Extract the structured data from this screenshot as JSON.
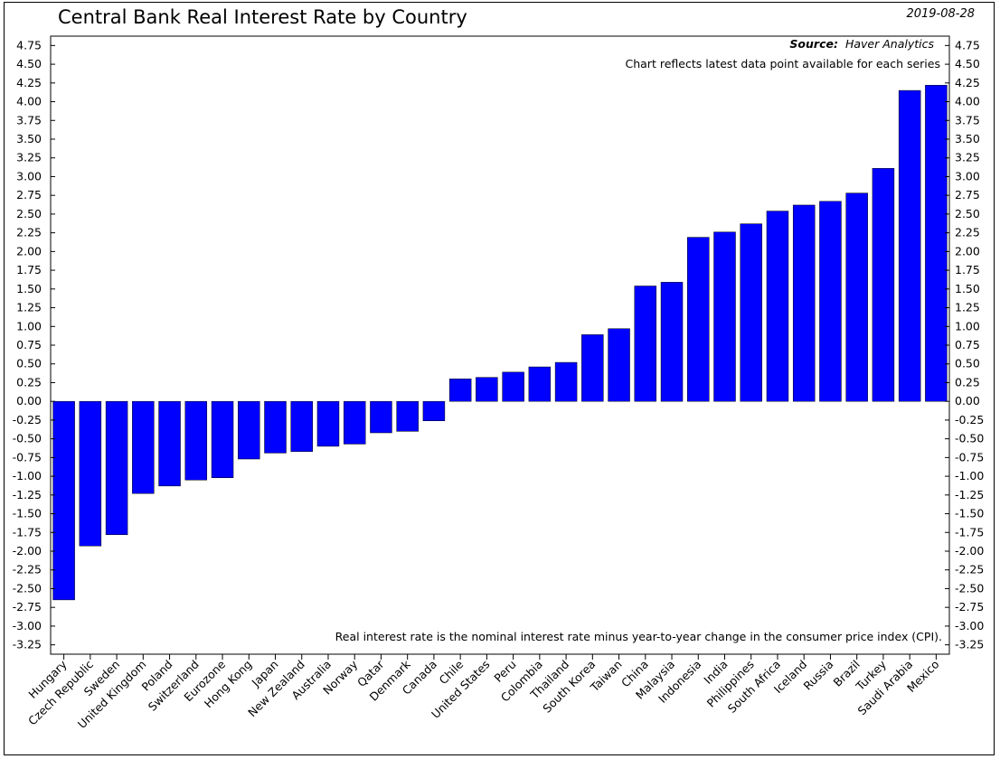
{
  "header": {
    "title": "Central Bank Real Interest Rate by Country",
    "date": "2019-08-28"
  },
  "notes": {
    "source_label": "Source:",
    "source_value": "Haver Analytics",
    "series_note": "Chart reflects latest data point available for each series",
    "definition": "Real interest rate is the nominal interest rate minus year-to-year change in the consumer price index (CPI)."
  },
  "colors": {
    "bar": "#0000ff",
    "bar_outline": "#000000",
    "axis": "#000000"
  },
  "chart_data": {
    "type": "bar",
    "title": "Central Bank Real Interest Rate by Country",
    "xlabel": "",
    "ylabel": "",
    "ylim": [
      -3.375,
      4.875
    ],
    "yticks": [
      "4.75",
      "4.50",
      "4.25",
      "4.00",
      "3.75",
      "3.50",
      "3.25",
      "3.00",
      "2.75",
      "2.50",
      "2.25",
      "2.00",
      "1.75",
      "1.50",
      "1.25",
      "1.00",
      "0.75",
      "0.50",
      "0.25",
      "0.00",
      "-0.25",
      "-0.50",
      "-0.75",
      "-1.00",
      "-1.25",
      "-1.50",
      "-1.75",
      "-2.00",
      "-2.25",
      "-2.50",
      "-2.75",
      "-3.00",
      "-3.25"
    ],
    "grid": false,
    "categories": [
      "Hungary",
      "Czech Republic",
      "Sweden",
      "United Kingdom",
      "Poland",
      "Switzerland",
      "Eurozone",
      "Hong Kong",
      "Japan",
      "New Zealand",
      "Australia",
      "Norway",
      "Qatar",
      "Denmark",
      "Canada",
      "Chile",
      "United States",
      "Peru",
      "Colombia",
      "Thailand",
      "South Korea",
      "Taiwan",
      "China",
      "Malaysia",
      "Indonesia",
      "India",
      "Philippines",
      "South Africa",
      "Iceland",
      "Russia",
      "Brazil",
      "Turkey",
      "Saudi Arabia",
      "Mexico"
    ],
    "values": [
      -2.65,
      -1.93,
      -1.78,
      -1.23,
      -1.13,
      -1.05,
      -1.02,
      -0.77,
      -0.69,
      -0.67,
      -0.6,
      -0.57,
      -0.42,
      -0.4,
      -0.26,
      0.3,
      0.32,
      0.39,
      0.46,
      0.52,
      0.89,
      0.97,
      1.54,
      1.59,
      2.19,
      2.26,
      2.37,
      2.54,
      2.62,
      2.67,
      2.78,
      3.11,
      4.15,
      4.22
    ]
  }
}
